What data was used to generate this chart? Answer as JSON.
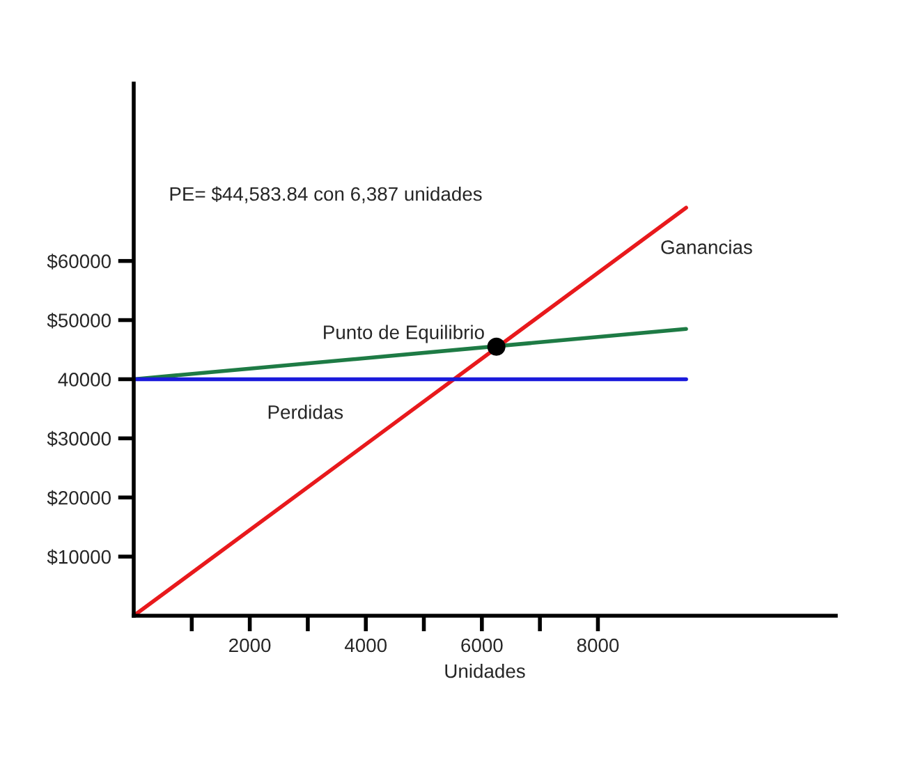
{
  "chart_data": {
    "type": "line",
    "xlabel": "Unidades",
    "xlim": [
      0,
      12100
    ],
    "ylim": [
      0,
      90000
    ],
    "xticks": [
      {
        "value": 1000,
        "label": null
      },
      2000,
      {
        "value": 3000,
        "label": null
      },
      4000,
      {
        "value": 5000,
        "label": null
      },
      6000,
      {
        "value": 7000,
        "label": null
      },
      8000
    ],
    "yticks": [
      {
        "value": 10000,
        "label": "$10000"
      },
      {
        "value": 20000,
        "label": "$20000"
      },
      {
        "value": 30000,
        "label": "$30000"
      },
      40000,
      {
        "value": 50000,
        "label": "$50000"
      },
      {
        "value": 60000,
        "label": "$60000"
      }
    ],
    "series": [
      {
        "color": "#e8191c",
        "x": [
          0,
          9520
        ],
        "values": [
          0,
          69000
        ]
      },
      {
        "color": "#1e7b45",
        "x": [
          0,
          9520
        ],
        "values": [
          40000,
          48500
        ]
      },
      {
        "color": "#1a1adb",
        "x": [
          0,
          9520
        ],
        "values": [
          40000,
          40000
        ]
      },
      {
        "type": "scatter",
        "color": "#000000",
        "marker": "circle",
        "x": [
          6250
        ],
        "values": [
          45500
        ]
      }
    ],
    "annotations": [
      "PE= $44,583.84 con 6,387 unidades",
      "Ganancias",
      {
        "text": "Punto de Equilibrio",
        "x": 6250,
        "y": 45500
      },
      "Perdidas"
    ],
    "grid": false,
    "legend": false,
    "line_style": "solid"
  }
}
